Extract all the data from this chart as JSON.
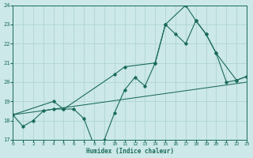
{
  "xlabel": "Humidex (Indice chaleur)",
  "bg_color": "#cce8e8",
  "grid_color": "#aad0d0",
  "line_color": "#1a6b5a",
  "xlim": [
    0,
    23
  ],
  "ylim": [
    17,
    24
  ],
  "xticks": [
    0,
    1,
    2,
    3,
    4,
    5,
    6,
    7,
    8,
    9,
    10,
    11,
    12,
    13,
    14,
    15,
    16,
    17,
    18,
    19,
    20,
    21,
    22,
    23
  ],
  "yticks": [
    17,
    18,
    19,
    20,
    21,
    22,
    23,
    24
  ],
  "line1_x": [
    0,
    1,
    2,
    3,
    4,
    5,
    6,
    7,
    8,
    9,
    10,
    11,
    12,
    13,
    14,
    15,
    16,
    17,
    18,
    19,
    20,
    21,
    22,
    23
  ],
  "line1_y": [
    18.3,
    17.7,
    18.0,
    18.5,
    18.6,
    18.6,
    18.6,
    18.1,
    16.7,
    17.0,
    18.4,
    19.6,
    20.25,
    19.8,
    21.0,
    23.0,
    22.5,
    22.0,
    23.2,
    22.5,
    21.5,
    20.0,
    20.1,
    20.3
  ],
  "line2_x": [
    0,
    4,
    5,
    10,
    11,
    14,
    15,
    17,
    18,
    19,
    20,
    22,
    23
  ],
  "line2_y": [
    18.3,
    19.0,
    18.6,
    20.4,
    20.8,
    21.0,
    23.0,
    24.0,
    23.2,
    22.5,
    21.5,
    20.1,
    20.3
  ],
  "line3_x": [
    0,
    23
  ],
  "line3_y": [
    18.3,
    20.0
  ]
}
